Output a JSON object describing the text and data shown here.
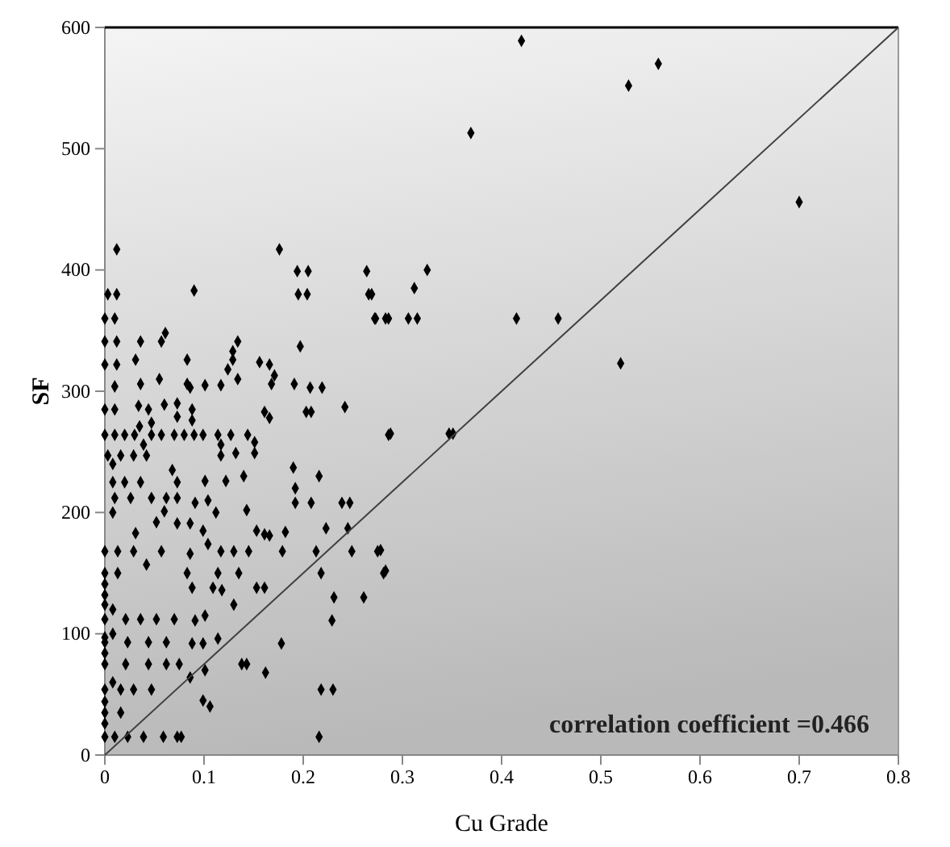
{
  "chart_data": {
    "type": "scatter",
    "xlabel": "Cu Grade",
    "ylabel": "SF",
    "annotations": [
      "correlation coefficient =0.466"
    ],
    "xlim": [
      0,
      0.8
    ],
    "ylim": [
      0,
      600
    ],
    "xticks": [
      0,
      0.1,
      0.2,
      0.3,
      0.4,
      0.5,
      0.6,
      0.7,
      0.8
    ],
    "yticks": [
      0,
      100,
      200,
      300,
      400,
      500,
      600
    ],
    "grid": false,
    "marker": "diamond",
    "series": [
      {
        "color": "#000000",
        "x": [
          0.42,
          0.558,
          0.528,
          0.369,
          0.7,
          0.325,
          0.312,
          0.269,
          0.273,
          0.286,
          0.306,
          0.315,
          0.415,
          0.457,
          0.52,
          0.288,
          0.347,
          0.351,
          0.278,
          0.283,
          0.012,
          0.176,
          0.194,
          0.205,
          0.264,
          0.003,
          0.012,
          0.09,
          0.195,
          0.204,
          0.266,
          0,
          0.01,
          0.272,
          0.283,
          0,
          0.012,
          0.036,
          0.057,
          0.061,
          0.134,
          0.129,
          0.197,
          0,
          0.012,
          0.031,
          0.083,
          0.129,
          0.156,
          0.166,
          0.124,
          0.171,
          0.055,
          0.134,
          0.036,
          0.083,
          0.101,
          0.117,
          0.168,
          0.191,
          0.01,
          0.086,
          0.207,
          0.219,
          0,
          0.01,
          0.034,
          0.044,
          0.06,
          0.073,
          0.088,
          0.161,
          0.166,
          0.203,
          0.208,
          0.242,
          0.047,
          0.088,
          0.073,
          0,
          0.01,
          0.02,
          0.03,
          0.047,
          0.057,
          0.07,
          0.08,
          0.09,
          0.099,
          0.114,
          0.127,
          0.144,
          0.286,
          0.035,
          0.039,
          0.151,
          0.117,
          0.003,
          0.016,
          0.029,
          0.042,
          0.117,
          0.132,
          0.151,
          0.19,
          0.216,
          0.192,
          0.101,
          0.122,
          0.14,
          0.068,
          0.073,
          0.008,
          0.02,
          0.036,
          0.01,
          0.026,
          0.047,
          0.062,
          0.073,
          0.091,
          0.104,
          0.192,
          0.208,
          0.239,
          0.247,
          0.06,
          0.112,
          0.143,
          0.073,
          0.086,
          0.052,
          0.153,
          0.161,
          0.166,
          0.182,
          0.223,
          0.245,
          0,
          0.013,
          0.029,
          0.057,
          0.086,
          0.104,
          0.117,
          0.13,
          0.145,
          0.179,
          0.213,
          0.249,
          0.275,
          0.031,
          0.099,
          0,
          0.013,
          0.042,
          0.083,
          0.114,
          0.135,
          0.218,
          0.281,
          0.088,
          0.109,
          0.118,
          0.153,
          0.161,
          0.231,
          0.261,
          0.13,
          0,
          0.021,
          0.036,
          0.052,
          0.07,
          0.091,
          0.101,
          0.229,
          0,
          0.023,
          0.044,
          0.062,
          0.088,
          0.099,
          0.114,
          0.178,
          0,
          0.021,
          0.044,
          0.062,
          0.075,
          0.143,
          0.138,
          0.162,
          0.101,
          0.086,
          0,
          0.016,
          0.029,
          0.047,
          0.218,
          0.23,
          0,
          0.016,
          0.099,
          0.106,
          0,
          0.01,
          0.023,
          0.039,
          0.059,
          0.073,
          0.077,
          0.216,
          0,
          0,
          0,
          0,
          0,
          0,
          0,
          0.008,
          0.008,
          0.008,
          0.008,
          0.008
        ],
        "values": [
          589,
          570,
          552,
          513,
          456,
          400,
          385,
          380,
          360,
          360,
          360,
          360,
          360,
          360,
          323,
          265,
          265,
          265,
          169,
          152,
          417,
          417,
          399,
          399,
          399,
          380,
          380,
          383,
          380,
          380,
          380,
          360,
          360,
          360,
          360,
          341,
          341,
          341,
          341,
          348,
          341,
          333,
          337,
          322,
          322,
          326,
          326,
          326,
          324,
          322,
          318,
          313,
          310,
          310,
          306,
          306,
          305,
          305,
          306,
          306,
          304,
          303,
          303,
          303,
          285,
          285,
          288,
          285,
          289,
          290,
          285,
          283,
          278,
          283,
          283,
          287,
          274,
          276,
          279,
          264,
          264,
          264,
          264,
          264,
          264,
          264,
          264,
          264,
          264,
          264,
          264,
          264,
          264,
          271,
          256,
          258,
          256,
          247,
          247,
          247,
          247,
          247,
          249,
          249,
          237,
          230,
          220,
          226,
          226,
          230,
          235,
          225,
          225,
          225,
          225,
          212,
          212,
          212,
          212,
          212,
          208,
          210,
          208,
          208,
          208,
          208,
          201,
          200,
          202,
          191,
          191,
          192,
          185,
          182,
          181,
          184,
          187,
          187,
          168,
          168,
          168,
          168,
          166,
          174,
          168,
          168,
          168,
          168,
          168,
          168,
          168,
          183,
          185,
          150,
          150,
          157,
          150,
          150,
          150,
          150,
          150,
          138,
          138,
          136,
          138,
          138,
          130,
          130,
          124,
          112,
          112,
          112,
          112,
          112,
          111,
          115,
          111,
          93,
          93,
          93,
          93,
          92,
          92,
          96,
          92,
          75,
          75,
          75,
          75,
          75,
          75,
          75,
          68,
          70,
          64,
          54,
          54,
          54,
          54,
          54,
          54,
          35,
          35,
          45,
          40,
          15,
          15,
          15,
          15,
          15,
          15,
          15,
          15,
          141,
          132,
          124,
          97,
          84,
          44,
          26,
          200,
          240,
          120,
          60,
          100
        ]
      },
      {
        "type": "line",
        "color": "#404040",
        "x": [
          0,
          0.8
        ],
        "values": [
          0,
          600
        ],
        "marker": "none",
        "line_style": "solid"
      }
    ]
  }
}
